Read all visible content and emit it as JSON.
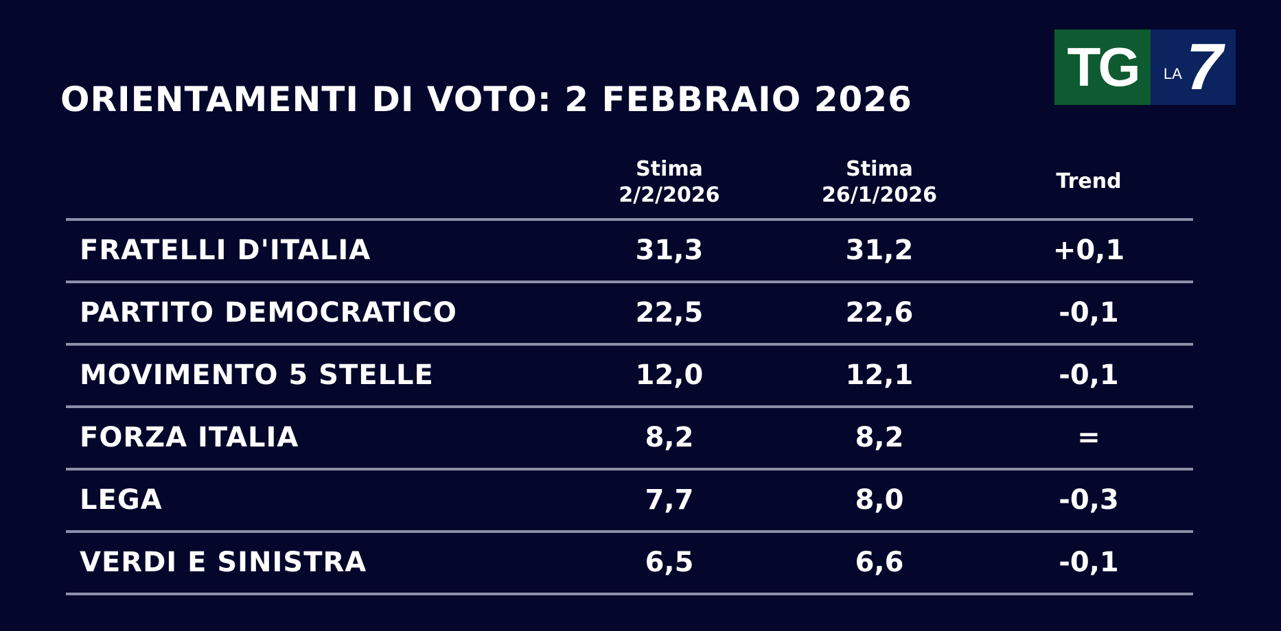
{
  "title": "ORIENTAMENTI DI VOTO: 2 FEBBRAIO 2026",
  "logo": {
    "tg": "TG",
    "la": "LA",
    "seven": "7",
    "colors": {
      "green": "#0e5a31",
      "blue": "#0b235e"
    }
  },
  "table": {
    "headers": [
      {
        "line1": "Stima",
        "line2": "2/2/2026"
      },
      {
        "line1": "Stima",
        "line2": "26/1/2026"
      },
      {
        "line1": "Trend",
        "line2": ""
      }
    ],
    "rows": [
      {
        "party": "FRATELLI D'ITALIA",
        "current": "31,3",
        "previous": "31,2",
        "trend": "+0,1"
      },
      {
        "party": "PARTITO DEMOCRATICO",
        "current": "22,5",
        "previous": "22,6",
        "trend": "-0,1"
      },
      {
        "party": "MOVIMENTO 5 STELLE",
        "current": "12,0",
        "previous": "12,1",
        "trend": "-0,1"
      },
      {
        "party": "FORZA ITALIA",
        "current": "8,2",
        "previous": "8,2",
        "trend": "="
      },
      {
        "party": "LEGA",
        "current": "7,7",
        "previous": "8,0",
        "trend": "-0,3"
      },
      {
        "party": "VERDI E SINISTRA",
        "current": "6,5",
        "previous": "6,6",
        "trend": "-0,1"
      }
    ]
  },
  "colors": {
    "background": "#04072b",
    "divider": "#8c8fa8",
    "text": "#ffffff"
  }
}
